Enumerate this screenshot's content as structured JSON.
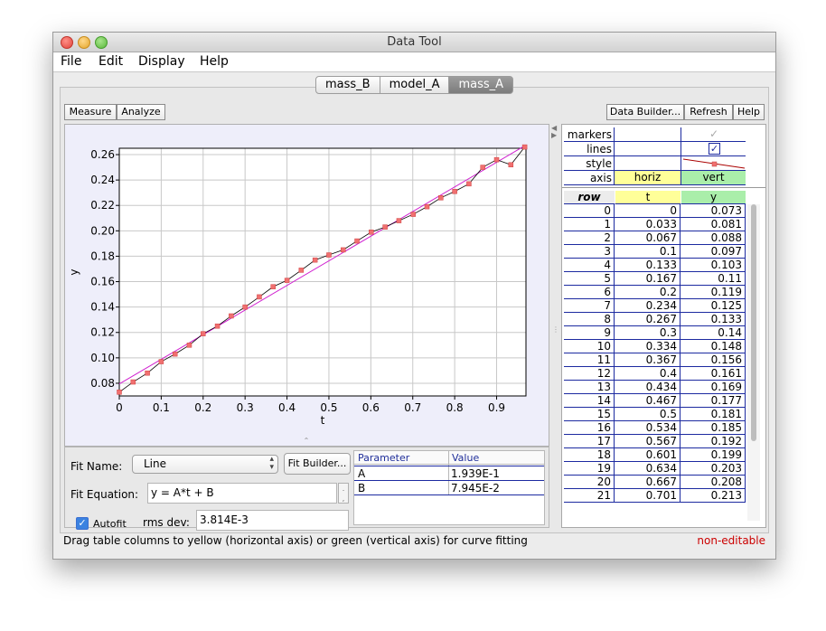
{
  "window": {
    "title": "Data Tool"
  },
  "menu": [
    "File",
    "Edit",
    "Display",
    "Help"
  ],
  "tabs": [
    {
      "label": "mass_B",
      "selected": false
    },
    {
      "label": "model_A",
      "selected": false
    },
    {
      "label": "mass_A",
      "selected": true
    }
  ],
  "toolbar": {
    "measure": "Measure",
    "analyze": "Analyze",
    "data_builder": "Data Builder...",
    "refresh": "Refresh",
    "help": "Help"
  },
  "chart_data": {
    "type": "scatter",
    "xlabel": "t",
    "ylabel": "y",
    "xlim": [
      0,
      0.97
    ],
    "ylim": [
      0.07,
      0.265
    ],
    "x_ticks": [
      "0",
      "0.1",
      "0.2",
      "0.3",
      "0.4",
      "0.5",
      "0.6",
      "0.7",
      "0.8",
      "0.9"
    ],
    "y_ticks": [
      "0.08",
      "0.10",
      "0.12",
      "0.14",
      "0.16",
      "0.18",
      "0.20",
      "0.22",
      "0.24",
      "0.26"
    ],
    "grid": true,
    "colors": {
      "markers": "#f07070",
      "line": "#000000",
      "fit": "#d020d0",
      "background": "#eeeefa"
    },
    "series": [
      {
        "x": [
          0,
          0.033,
          0.067,
          0.1,
          0.133,
          0.167,
          0.2,
          0.234,
          0.267,
          0.3,
          0.334,
          0.367,
          0.4,
          0.434,
          0.467,
          0.5,
          0.534,
          0.567,
          0.601,
          0.634,
          0.667,
          0.701,
          0.734,
          0.767,
          0.8,
          0.834,
          0.867,
          0.9,
          0.934,
          0.967
        ],
        "y": [
          0.073,
          0.081,
          0.088,
          0.097,
          0.103,
          0.11,
          0.119,
          0.125,
          0.133,
          0.14,
          0.148,
          0.156,
          0.161,
          0.169,
          0.177,
          0.181,
          0.185,
          0.192,
          0.199,
          0.203,
          0.208,
          0.213,
          0.219,
          0.226,
          0.231,
          0.237,
          0.25,
          0.256,
          0.252,
          0.266
        ]
      }
    ],
    "fit": {
      "A": 0.1939,
      "B": 0.07945
    }
  },
  "fit": {
    "name_label": "Fit Name:",
    "name_value": "Line",
    "builder_button": "Fit Builder...",
    "equation_label": "Fit Equation:",
    "equation_value": "y = A*t + B",
    "autofit_label": "Autofit",
    "autofit_checked": true,
    "rms_label": "rms dev:",
    "rms_value": "3.814E-3",
    "param_header": "Parameter",
    "value_header": "Value",
    "params": [
      {
        "name": "A",
        "value": "1.939E-1"
      },
      {
        "name": "B",
        "value": "7.945E-2"
      }
    ]
  },
  "props": {
    "labels": [
      "markers",
      "lines",
      "style",
      "axis"
    ],
    "axis_horiz": "horiz",
    "axis_vert": "vert",
    "markers_checked": true,
    "lines_checked": true
  },
  "table": {
    "headers": [
      "row",
      "t",
      "y"
    ],
    "rows": [
      [
        "0",
        "0",
        "0.073"
      ],
      [
        "1",
        "0.033",
        "0.081"
      ],
      [
        "2",
        "0.067",
        "0.088"
      ],
      [
        "3",
        "0.1",
        "0.097"
      ],
      [
        "4",
        "0.133",
        "0.103"
      ],
      [
        "5",
        "0.167",
        "0.11"
      ],
      [
        "6",
        "0.2",
        "0.119"
      ],
      [
        "7",
        "0.234",
        "0.125"
      ],
      [
        "8",
        "0.267",
        "0.133"
      ],
      [
        "9",
        "0.3",
        "0.14"
      ],
      [
        "10",
        "0.334",
        "0.148"
      ],
      [
        "11",
        "0.367",
        "0.156"
      ],
      [
        "12",
        "0.4",
        "0.161"
      ],
      [
        "13",
        "0.434",
        "0.169"
      ],
      [
        "14",
        "0.467",
        "0.177"
      ],
      [
        "15",
        "0.5",
        "0.181"
      ],
      [
        "16",
        "0.534",
        "0.185"
      ],
      [
        "17",
        "0.567",
        "0.192"
      ],
      [
        "18",
        "0.601",
        "0.199"
      ],
      [
        "19",
        "0.634",
        "0.203"
      ],
      [
        "20",
        "0.667",
        "0.208"
      ],
      [
        "21",
        "0.701",
        "0.213"
      ]
    ],
    "colors": {
      "horiz": "#ffff99",
      "vert": "#aaeeaa",
      "grid": "#0000aa"
    }
  },
  "status": {
    "message": "Drag table columns to yellow (horizontal axis) or green (vertical axis) for curve fitting",
    "editable": "non-editable",
    "editable_color": "#cc0000"
  }
}
